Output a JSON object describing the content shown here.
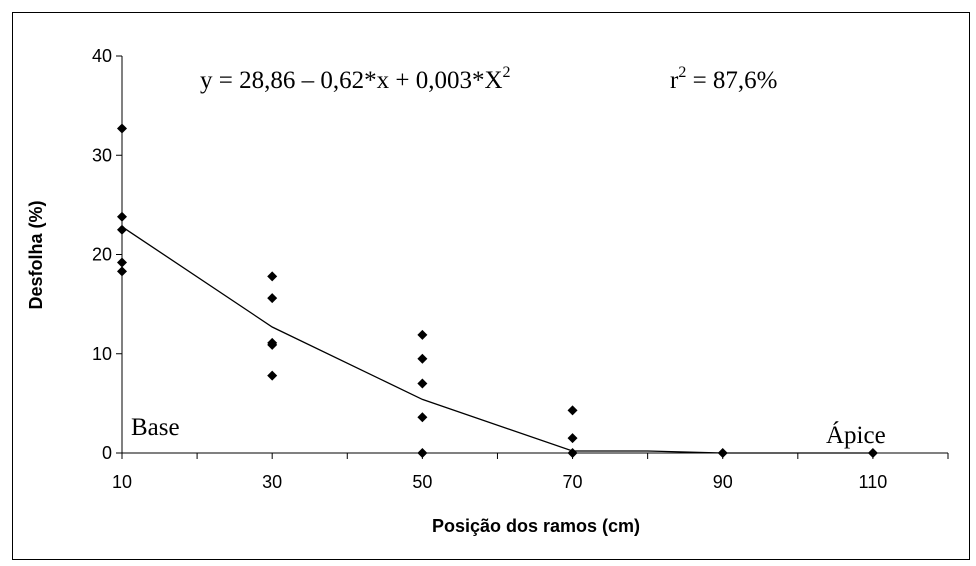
{
  "chart_data": {
    "type": "scatter",
    "title": "",
    "xlabel": "Posição dos ramos (cm)",
    "ylabel": "Desfolha (%)",
    "xlim": [
      10,
      120
    ],
    "ylim": [
      0,
      40
    ],
    "x_ticks": [
      10,
      30,
      50,
      70,
      90,
      110
    ],
    "y_ticks": [
      0,
      10,
      20,
      30,
      40
    ],
    "grid": false,
    "legend": "none",
    "points": [
      {
        "x": 10,
        "y": 32.7
      },
      {
        "x": 10,
        "y": 23.8
      },
      {
        "x": 10,
        "y": 22.5
      },
      {
        "x": 10,
        "y": 19.2
      },
      {
        "x": 10,
        "y": 18.3
      },
      {
        "x": 30,
        "y": 17.8
      },
      {
        "x": 30,
        "y": 15.6
      },
      {
        "x": 30,
        "y": 11.1
      },
      {
        "x": 30,
        "y": 10.9
      },
      {
        "x": 30,
        "y": 7.8
      },
      {
        "x": 50,
        "y": 11.9
      },
      {
        "x": 50,
        "y": 9.5
      },
      {
        "x": 50,
        "y": 7.0
      },
      {
        "x": 50,
        "y": 3.6
      },
      {
        "x": 50,
        "y": 0
      },
      {
        "x": 70,
        "y": 4.3
      },
      {
        "x": 70,
        "y": 1.5
      },
      {
        "x": 70,
        "y": 0
      },
      {
        "x": 90,
        "y": 0
      },
      {
        "x": 110,
        "y": 0
      }
    ],
    "fit_line": {
      "x": [
        10,
        30,
        50,
        70,
        80,
        90,
        110
      ],
      "y": [
        22.8,
        12.7,
        5.4,
        0.2,
        0.2,
        0,
        0
      ]
    },
    "equation": {
      "main": "y = 28,86 – 0,62*x + 0,003*X",
      "sup": "2"
    },
    "r_squared": {
      "prefix": "r",
      "sup": "2",
      "rest": " = 87,6%"
    },
    "annotations": {
      "base": "Base",
      "apice": "Ápice"
    },
    "colors": {
      "marker": "#000000",
      "line": "#000000",
      "axis": "#000000"
    }
  }
}
